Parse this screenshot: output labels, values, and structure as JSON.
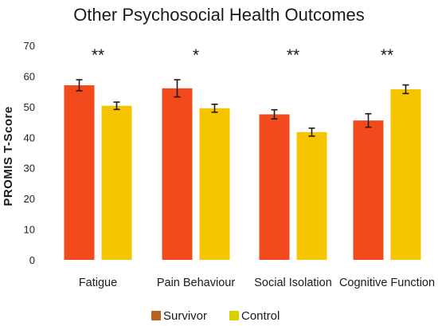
{
  "chart_data": {
    "type": "bar",
    "title": "Other Psychosocial Health Outcomes",
    "xlabel": "",
    "ylabel": "PROMIS T-Score",
    "ylim": [
      0,
      70
    ],
    "yticks": [
      0,
      10,
      20,
      30,
      40,
      50,
      60,
      70
    ],
    "categories": [
      "Fatigue",
      "Pain Behaviour",
      "Social Isolation",
      "Cognitive Function"
    ],
    "series": [
      {
        "name": "Survivor",
        "values": [
          57,
          56,
          47.5,
          45.5
        ],
        "errors": [
          1.8,
          2.8,
          1.5,
          2.2
        ],
        "color": "#f34a1d",
        "legend_color": "#b5651d"
      },
      {
        "name": "Control",
        "values": [
          50.3,
          49.5,
          41.7,
          55.7
        ],
        "errors": [
          1.2,
          1.3,
          1.3,
          1.4
        ],
        "color": "#f7c400",
        "legend_color": "#d6d000"
      }
    ],
    "significance": [
      "**",
      "*",
      "**",
      "**"
    ],
    "grid": false,
    "legend_position": "bottom"
  }
}
